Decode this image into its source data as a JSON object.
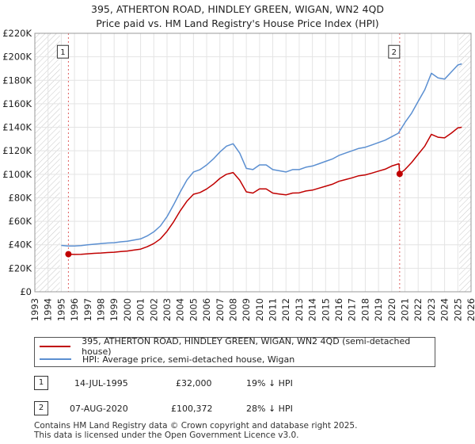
{
  "chart_data": {
    "type": "line",
    "title": "395, ATHERTON ROAD, HINDLEY GREEN, WIGAN, WN2 4QD",
    "subtitle": "Price paid vs. HM Land Registry's House Price Index (HPI)",
    "xlim": [
      1993,
      2026
    ],
    "ylim": [
      0,
      220000
    ],
    "x_ticks": [
      "1993",
      "1994",
      "1995",
      "1996",
      "1997",
      "1998",
      "1999",
      "2000",
      "2001",
      "2002",
      "2003",
      "2004",
      "2005",
      "2006",
      "2007",
      "2008",
      "2009",
      "2010",
      "2011",
      "2012",
      "2013",
      "2014",
      "2015",
      "2016",
      "2017",
      "2018",
      "2019",
      "2020",
      "2021",
      "2022",
      "2023",
      "2024",
      "2025",
      "2026"
    ],
    "y_ticks": [
      {
        "value": 0,
        "label": "£0"
      },
      {
        "value": 20000,
        "label": "£20K"
      },
      {
        "value": 40000,
        "label": "£40K"
      },
      {
        "value": 60000,
        "label": "£60K"
      },
      {
        "value": 80000,
        "label": "£80K"
      },
      {
        "value": 100000,
        "label": "£100K"
      },
      {
        "value": 120000,
        "label": "£120K"
      },
      {
        "value": 140000,
        "label": "£140K"
      },
      {
        "value": 160000,
        "label": "£160K"
      },
      {
        "value": 180000,
        "label": "£180K"
      },
      {
        "value": 200000,
        "label": "£200K"
      },
      {
        "value": 220000,
        "label": "£220K"
      }
    ],
    "grid": true,
    "hatched_ranges": [
      [
        1993,
        1994.9
      ],
      [
        2025.1,
        2026
      ]
    ],
    "series": [
      {
        "name": "HPI: Average price, semi-detached house, Wigan",
        "color": "#5b8fd1",
        "points": [
          [
            1995.0,
            39500
          ],
          [
            1995.5,
            39000
          ],
          [
            1996.0,
            39000
          ],
          [
            1996.5,
            39300
          ],
          [
            1997.0,
            40000
          ],
          [
            1997.5,
            40500
          ],
          [
            1998.0,
            41000
          ],
          [
            1998.5,
            41500
          ],
          [
            1999.0,
            41800
          ],
          [
            1999.5,
            42500
          ],
          [
            2000.0,
            43000
          ],
          [
            2000.5,
            44000
          ],
          [
            2001.0,
            45000
          ],
          [
            2001.5,
            47500
          ],
          [
            2002.0,
            51000
          ],
          [
            2002.5,
            56000
          ],
          [
            2003.0,
            64000
          ],
          [
            2003.5,
            74000
          ],
          [
            2004.0,
            85000
          ],
          [
            2004.5,
            95000
          ],
          [
            2005.0,
            102000
          ],
          [
            2005.5,
            104000
          ],
          [
            2006.0,
            108000
          ],
          [
            2006.5,
            113000
          ],
          [
            2007.0,
            119000
          ],
          [
            2007.5,
            124000
          ],
          [
            2008.0,
            126000
          ],
          [
            2008.5,
            118000
          ],
          [
            2009.0,
            105000
          ],
          [
            2009.5,
            104000
          ],
          [
            2010.0,
            108000
          ],
          [
            2010.5,
            108000
          ],
          [
            2011.0,
            104000
          ],
          [
            2011.5,
            103000
          ],
          [
            2012.0,
            102000
          ],
          [
            2012.5,
            104000
          ],
          [
            2013.0,
            104000
          ],
          [
            2013.5,
            106000
          ],
          [
            2014.0,
            107000
          ],
          [
            2014.5,
            109000
          ],
          [
            2015.0,
            111000
          ],
          [
            2015.5,
            113000
          ],
          [
            2016.0,
            116000
          ],
          [
            2016.5,
            118000
          ],
          [
            2017.0,
            120000
          ],
          [
            2017.5,
            122000
          ],
          [
            2018.0,
            123000
          ],
          [
            2018.5,
            125000
          ],
          [
            2019.0,
            127000
          ],
          [
            2019.5,
            129000
          ],
          [
            2020.0,
            132000
          ],
          [
            2020.5,
            135000
          ],
          [
            2021.0,
            144000
          ],
          [
            2021.5,
            152000
          ],
          [
            2022.0,
            162000
          ],
          [
            2022.5,
            172000
          ],
          [
            2023.0,
            186000
          ],
          [
            2023.5,
            182000
          ],
          [
            2024.0,
            181000
          ],
          [
            2024.5,
            187000
          ],
          [
            2025.0,
            193000
          ],
          [
            2025.3,
            194000
          ]
        ]
      },
      {
        "name": "395, ATHERTON ROAD, HINDLEY GREEN, WIGAN, WN2 4QD (semi-detached house)",
        "color": "#c00000",
        "points": [
          [
            1995.54,
            32000
          ],
          [
            1996.0,
            31800
          ],
          [
            1996.5,
            31900
          ],
          [
            1997.0,
            32300
          ],
          [
            1997.5,
            32700
          ],
          [
            1998.0,
            33000
          ],
          [
            1998.5,
            33400
          ],
          [
            1999.0,
            33700
          ],
          [
            1999.5,
            34200
          ],
          [
            2000.0,
            34700
          ],
          [
            2000.5,
            35500
          ],
          [
            2001.0,
            36300
          ],
          [
            2001.5,
            38300
          ],
          [
            2002.0,
            41000
          ],
          [
            2002.5,
            45000
          ],
          [
            2003.0,
            51500
          ],
          [
            2003.5,
            59500
          ],
          [
            2004.0,
            69000
          ],
          [
            2004.5,
            77000
          ],
          [
            2005.0,
            83000
          ],
          [
            2005.5,
            84500
          ],
          [
            2006.0,
            87500
          ],
          [
            2006.5,
            91500
          ],
          [
            2007.0,
            96500
          ],
          [
            2007.5,
            100000
          ],
          [
            2008.0,
            101500
          ],
          [
            2008.5,
            95000
          ],
          [
            2009.0,
            85000
          ],
          [
            2009.5,
            84000
          ],
          [
            2010.0,
            87500
          ],
          [
            2010.5,
            87500
          ],
          [
            2011.0,
            84000
          ],
          [
            2011.5,
            83200
          ],
          [
            2012.0,
            82500
          ],
          [
            2012.5,
            84000
          ],
          [
            2013.0,
            84200
          ],
          [
            2013.5,
            85800
          ],
          [
            2014.0,
            86500
          ],
          [
            2014.5,
            88200
          ],
          [
            2015.0,
            89800
          ],
          [
            2015.5,
            91500
          ],
          [
            2016.0,
            94000
          ],
          [
            2016.5,
            95500
          ],
          [
            2017.0,
            97000
          ],
          [
            2017.5,
            98700
          ],
          [
            2018.0,
            99500
          ],
          [
            2018.5,
            101000
          ],
          [
            2019.0,
            102700
          ],
          [
            2019.5,
            104300
          ],
          [
            2020.0,
            107000
          ],
          [
            2020.55,
            109000
          ],
          [
            2020.6,
            100372
          ],
          [
            2021.0,
            104000
          ],
          [
            2021.5,
            110000
          ],
          [
            2022.0,
            117000
          ],
          [
            2022.5,
            124000
          ],
          [
            2023.0,
            134000
          ],
          [
            2023.5,
            131500
          ],
          [
            2024.0,
            131000
          ],
          [
            2024.5,
            135000
          ],
          [
            2025.0,
            139500
          ],
          [
            2025.3,
            140000
          ]
        ]
      }
    ],
    "annotations": [
      {
        "label": "1",
        "x": 1995.54,
        "value": 32000,
        "box_value": 205000
      },
      {
        "label": "2",
        "x": 2020.6,
        "value": 100372,
        "box_value": 205000
      }
    ],
    "legend_position": "below"
  },
  "legend": {
    "property_label": "395, ATHERTON ROAD, HINDLEY GREEN, WIGAN, WN2 4QD (semi-detached house)",
    "hpi_label": "HPI: Average price, semi-detached house, Wigan",
    "property_color": "#c00000",
    "hpi_color": "#5b8fd1"
  },
  "transactions": [
    {
      "num": "1",
      "date": "14-JUL-1995",
      "price": "£32,000",
      "hpi": "19% ↓ HPI"
    },
    {
      "num": "2",
      "date": "07-AUG-2020",
      "price": "£100,372",
      "hpi": "28% ↓ HPI"
    }
  ],
  "footer": {
    "line1": "Contains HM Land Registry data © Crown copyright and database right 2025.",
    "line2": "This data is licensed under the Open Government Licence v3.0."
  }
}
